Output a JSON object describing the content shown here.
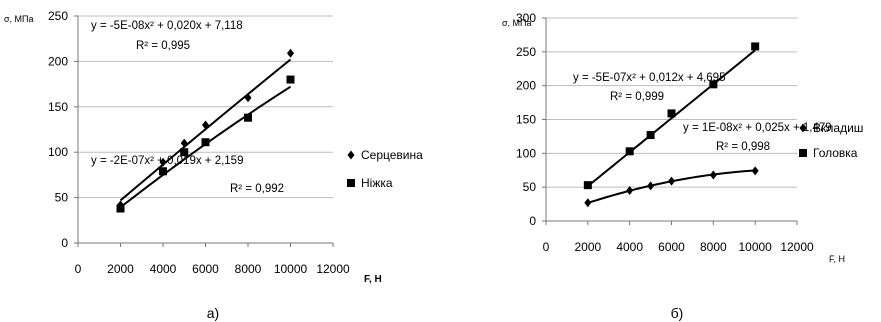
{
  "chart_data": [
    {
      "type": "scatter",
      "caption": "а)",
      "ylabel": "σ, МПа",
      "xlabel": "F, Н",
      "xlim": [
        0,
        12000
      ],
      "ylim": [
        0,
        250
      ],
      "xticks": [
        0,
        2000,
        4000,
        6000,
        8000,
        10000,
        12000
      ],
      "yticks": [
        0,
        50,
        100,
        150,
        200,
        250
      ],
      "grid": "horizontal",
      "legend_position": "right",
      "series": [
        {
          "name": "Серцевина",
          "marker": "diamond",
          "x": [
            2000,
            4000,
            5000,
            6000,
            8000,
            10000
          ],
          "y": [
            42,
            89,
            110,
            130,
            160,
            209
          ],
          "trendline": {
            "equation": "y = -5E-08x² + 0,020x + 7,118",
            "r2": "R² = 0,995",
            "a": -5e-08,
            "b": 0.02,
            "c": 7.118
          }
        },
        {
          "name": "Ніжка",
          "marker": "square",
          "x": [
            2000,
            4000,
            5000,
            6000,
            8000,
            10000
          ],
          "y": [
            38,
            79,
            100,
            111,
            138,
            180
          ],
          "trendline": {
            "equation": "y = -2E-07x² + 0,019x + 2,159",
            "r2": "R² = 0,992",
            "a": -2e-07,
            "b": 0.019,
            "c": 2.159
          }
        }
      ]
    },
    {
      "type": "scatter",
      "caption": "б)",
      "ylabel": "σ, МПа",
      "xlabel": "F, Н",
      "xlim": [
        0,
        12000
      ],
      "ylim": [
        0,
        300
      ],
      "xticks": [
        0,
        2000,
        4000,
        6000,
        8000,
        10000,
        12000
      ],
      "yticks": [
        0,
        50,
        100,
        150,
        200,
        250,
        300
      ],
      "grid": "horizontal",
      "legend_position": "right",
      "series": [
        {
          "name": "Вкладиш",
          "marker": "diamond",
          "x": [
            2000,
            4000,
            5000,
            6000,
            8000,
            10000
          ],
          "y": [
            27,
            45,
            52,
            59,
            68,
            74
          ],
          "trendline": {
            "equation": "y = -5E-07x² + 0,012x + 4,695",
            "r2": "R² = 0,999",
            "a": -5e-07,
            "b": 0.012,
            "c": 4.695
          }
        },
        {
          "name": "Головка",
          "marker": "square",
          "x": [
            2000,
            4000,
            5000,
            6000,
            8000,
            10000
          ],
          "y": [
            53,
            103,
            127,
            159,
            202,
            258
          ],
          "trendline": {
            "equation": "y = 1E-08x² + 0,025x + 1,479",
            "r2": "R² = 0,998",
            "a": 1e-08,
            "b": 0.025,
            "c": 1.479
          }
        }
      ]
    }
  ]
}
